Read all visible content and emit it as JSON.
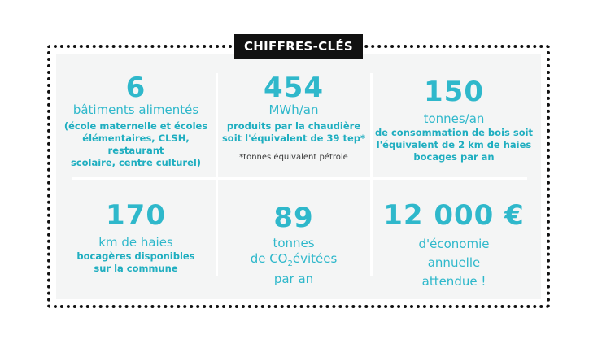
{
  "header": {
    "badge": "CHIFFRES-CLÉS"
  },
  "cells": [
    {
      "value": "6",
      "label": "bâtiments alimentés",
      "detail": [
        "(école maternelle et écoles",
        "élémentaires, CLSH, restaurant",
        "scolaire, centre culturel)"
      ]
    },
    {
      "value": "454",
      "label": "MWh/an",
      "detail": [
        "produits par la chaudière",
        "soit l'équivalent de 39 tep*"
      ],
      "note": "*tonnes équivalent pétrole"
    },
    {
      "value": "150",
      "label": "tonnes/an",
      "detail": [
        "de consommation de bois soit",
        "l'équivalent de 2 km de haies",
        "bocages par an"
      ]
    },
    {
      "value": "170",
      "label": "km de haies",
      "detail": [
        "bocagères disponibles",
        "sur la commune"
      ]
    },
    {
      "value": "89",
      "label_lines": [
        "tonnes",
        "de CO",
        "2",
        "évitées",
        "par an"
      ]
    },
    {
      "value": "12 000 €",
      "label_lines": [
        "d'économie",
        "annuelle",
        "attendue !"
      ]
    }
  ]
}
